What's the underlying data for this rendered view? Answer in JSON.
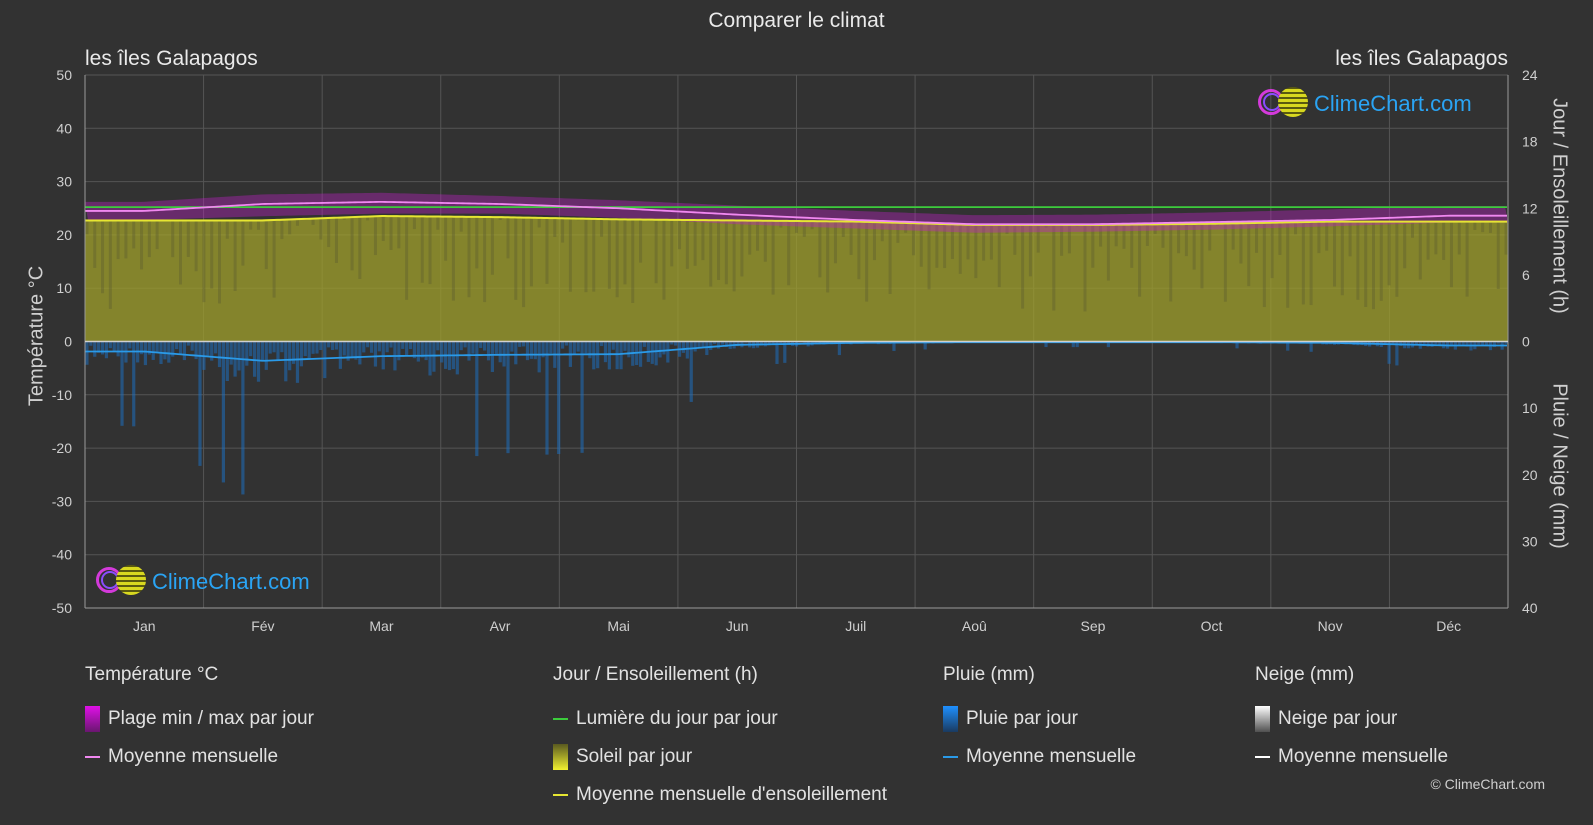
{
  "title": "Comparer le climat",
  "location_left": "les îles Galapagos",
  "location_right": "les îles Galapagos",
  "axis": {
    "left_title": "Température °C",
    "right_top_title": "Jour / Ensoleillement (h)",
    "right_bottom_title": "Pluie / Neige (mm)"
  },
  "brand": {
    "logo_text": "ClimeChart.com",
    "copyright": "© ClimeChart.com"
  },
  "colors": {
    "background": "#323232",
    "temp_range": "#d020d8",
    "temp_mean": "#f088f0",
    "daylight": "#3ccc3c",
    "sunshine_fill": "#a4a42a",
    "sunshine_mean": "#e6e632",
    "rain": "#1e90ff",
    "rain_mean": "#2a9ae8",
    "snow": "#ffffff",
    "logo": "#2aa4f4"
  },
  "legend": {
    "groups": [
      {
        "title": "Température °C",
        "items": [
          {
            "label": "Plage min / max par jour",
            "kind": "box",
            "icon": "temp-range-swatch-icon",
            "color": "#e010e8"
          },
          {
            "label": "Moyenne mensuelle",
            "kind": "line",
            "icon": "temp-mean-line-icon",
            "color": "#f088f0"
          }
        ]
      },
      {
        "title": "Jour / Ensoleillement (h)",
        "items": [
          {
            "label": "Lumière du jour par jour",
            "kind": "line",
            "icon": "daylight-line-icon",
            "color": "#3ccc3c"
          },
          {
            "label": "Soleil par jour",
            "kind": "box",
            "icon": "sunshine-swatch-icon",
            "color": "#d8d830"
          },
          {
            "label": "Moyenne mensuelle d'ensoleillement",
            "kind": "line",
            "icon": "sunshine-mean-line-icon",
            "color": "#e6e632"
          }
        ]
      },
      {
        "title": "Pluie (mm)",
        "items": [
          {
            "label": "Pluie par jour",
            "kind": "box",
            "icon": "rain-swatch-icon",
            "color": "#1e90ff"
          },
          {
            "label": "Moyenne mensuelle",
            "kind": "line",
            "icon": "rain-mean-line-icon",
            "color": "#2a9ae8"
          }
        ]
      },
      {
        "title": "Neige (mm)",
        "items": [
          {
            "label": "Neige par jour",
            "kind": "box",
            "icon": "snow-swatch-icon",
            "color": "#ffffff"
          },
          {
            "label": "Moyenne mensuelle",
            "kind": "line",
            "icon": "snow-mean-line-icon",
            "color": "#ffffff"
          }
        ]
      }
    ]
  },
  "chart_data": {
    "type": "area",
    "categories": [
      "Jan",
      "Fév",
      "Mar",
      "Avr",
      "Mai",
      "Jun",
      "Juil",
      "Aoû",
      "Sep",
      "Oct",
      "Nov",
      "Déc"
    ],
    "left_axis": {
      "label": "Température °C",
      "range": [
        -50,
        50
      ],
      "ticks": [
        50,
        40,
        30,
        20,
        10,
        0,
        -10,
        -20,
        -30,
        -40,
        -50
      ]
    },
    "right_top_axis": {
      "label": "Jour / Ensoleillement (h)",
      "range": [
        0,
        24
      ],
      "ticks": [
        24,
        18,
        12,
        6,
        0
      ]
    },
    "right_bottom_axis": {
      "label": "Pluie / Neige (mm)",
      "range": [
        0,
        40
      ],
      "ticks": [
        0,
        10,
        20,
        30,
        40
      ]
    },
    "grid": true,
    "series": [
      {
        "name": "Plage min / max par jour",
        "axis": "temperature",
        "min": [
          22.8,
          23.5,
          24.0,
          24.0,
          23.2,
          22.0,
          21.2,
          20.4,
          20.6,
          21.0,
          21.6,
          22.3
        ],
        "max": [
          26.2,
          27.6,
          27.9,
          27.3,
          26.5,
          25.5,
          24.5,
          23.7,
          23.8,
          24.2,
          24.8,
          25.4
        ]
      },
      {
        "name": "Moyenne mensuelle",
        "axis": "temperature",
        "values": [
          24.5,
          25.8,
          26.2,
          25.8,
          25.0,
          23.8,
          22.8,
          22.0,
          22.0,
          22.4,
          22.8,
          23.6
        ]
      },
      {
        "name": "Lumière du jour par jour",
        "axis": "daylight_hours",
        "values": [
          12.1,
          12.1,
          12.1,
          12.1,
          12.1,
          12.1,
          12.1,
          12.1,
          12.1,
          12.1,
          12.1,
          12.1
        ]
      },
      {
        "name": "Soleil par jour",
        "axis": "daylight_hours",
        "values": [
          11.0,
          11.0,
          11.3,
          11.2,
          11.0,
          11.0,
          10.8,
          10.6,
          10.6,
          10.7,
          10.8,
          10.9
        ]
      },
      {
        "name": "Moyenne mensuelle d'ensoleillement",
        "axis": "daylight_hours",
        "values": [
          10.9,
          10.9,
          11.3,
          11.2,
          11.0,
          10.9,
          10.8,
          10.5,
          10.5,
          10.6,
          10.8,
          10.8
        ]
      },
      {
        "name": "Pluie par jour",
        "axis": "precip_mm",
        "values": [
          1.5,
          3.0,
          2.3,
          2.0,
          2.0,
          0.5,
          0.2,
          0.1,
          0.1,
          0.1,
          0.2,
          0.6
        ]
      },
      {
        "name": "Moyenne mensuelle",
        "axis": "precip_mm",
        "values": [
          1.5,
          2.9,
          2.2,
          2.0,
          1.9,
          0.5,
          0.2,
          0.1,
          0.1,
          0.1,
          0.2,
          0.6
        ]
      }
    ]
  }
}
